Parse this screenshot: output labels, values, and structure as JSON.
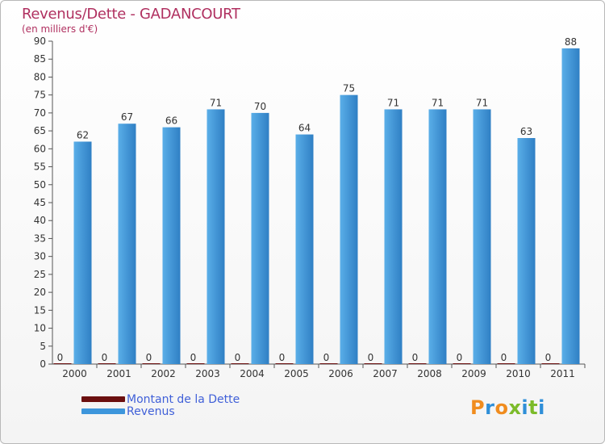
{
  "header": {
    "title": "Revenus/Dette - GADANCOURT",
    "subtitle": "(en milliers d'€)"
  },
  "legend": {
    "items": [
      {
        "label": "Montant de la Dette",
        "color": "#6b0f0f"
      },
      {
        "label": "Revenus",
        "color": "#3d96dc"
      }
    ]
  },
  "logo": {
    "text": "Proxiti"
  },
  "colors": {
    "dette": "#6b0f0f",
    "revenus_light": "#56aae6",
    "revenus_dark": "#2f7fc4",
    "title": "#b03060"
  },
  "chart_data": {
    "type": "bar",
    "title": "Revenus/Dette - GADANCOURT",
    "ylabel": "(en milliers d'€)",
    "xlabel": "",
    "categories": [
      "2000",
      "2001",
      "2002",
      "2003",
      "2004",
      "2005",
      "2006",
      "2007",
      "2008",
      "2009",
      "2010",
      "2011"
    ],
    "series": [
      {
        "name": "Montant de la Dette",
        "values": [
          0,
          0,
          0,
          0,
          0,
          0,
          0,
          0,
          0,
          0,
          0,
          0
        ]
      },
      {
        "name": "Revenus",
        "values": [
          62,
          67,
          66,
          71,
          70,
          64,
          75,
          71,
          71,
          71,
          63,
          88
        ]
      }
    ],
    "ylim": [
      0,
      90
    ],
    "yticks": [
      0,
      5,
      10,
      15,
      20,
      25,
      30,
      35,
      40,
      45,
      50,
      55,
      60,
      65,
      70,
      75,
      80,
      85,
      90
    ],
    "grid": false,
    "legend_position": "bottom-left"
  }
}
